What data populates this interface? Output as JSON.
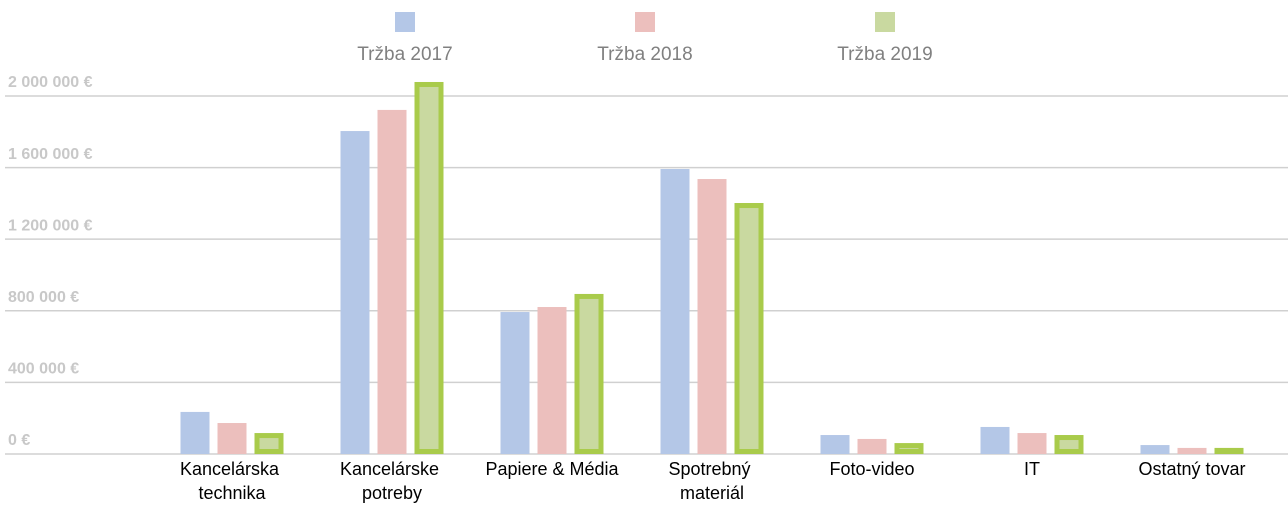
{
  "chart_data": {
    "type": "bar",
    "categories": [
      "Kancelárska technika",
      "Kancelárske potreby",
      "Papiere & Média",
      "Spotrebný materiál",
      "Foto-video",
      "IT",
      "Ostatný tovar"
    ],
    "series": [
      {
        "name": "Tržba 2017",
        "color": "#b4c7e7",
        "values": [
          235000,
          1804000,
          793000,
          1592000,
          106000,
          151000,
          50000
        ]
      },
      {
        "name": "Tržba 2018",
        "color": "#ecbfbd",
        "values": [
          173000,
          1922000,
          821000,
          1536000,
          84000,
          117000,
          34000
        ]
      },
      {
        "name": "Tržba 2019",
        "color": "#c9d9a0",
        "stroke": "#a9cb4b",
        "values": [
          117000,
          2078000,
          894000,
          1402000,
          61000,
          106000,
          34000
        ]
      }
    ],
    "ylim": [
      0,
      2536000
    ],
    "yticks": [
      {
        "value": 0,
        "label": "0 €"
      },
      {
        "value": 400000,
        "label": "400 000 €"
      },
      {
        "value": 800000,
        "label": "800 000 €"
      },
      {
        "value": 1200000,
        "label": "1 200 000 €"
      },
      {
        "value": 1600000,
        "label": "1 600 000 €"
      },
      {
        "value": 2000000,
        "label": "2 000 000 €"
      }
    ],
    "grid": true,
    "legend": "top"
  }
}
